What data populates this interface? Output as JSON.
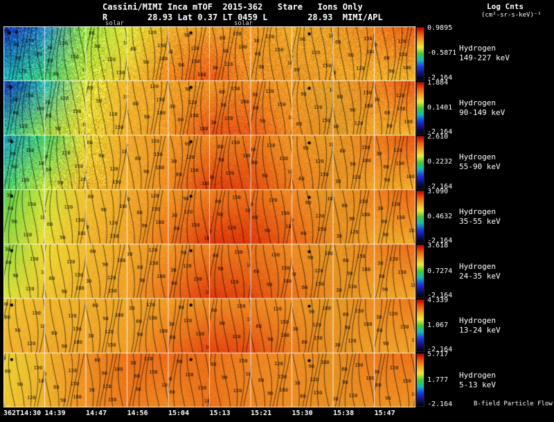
{
  "header": {
    "title": "Cassini/MIMI Inca mTOF  2015-362   Stare   Ions Only",
    "subtitle": "R        28.93 Lat 0.37 LT 0459 L        28.93  MIMI/APL",
    "legend_title": "Log Cnts",
    "legend_units": "(cm²-sr-s-keV)⁻¹",
    "solar_label_1": "solar",
    "solar_label_2": "solar"
  },
  "footer": {
    "note": "B-field Particle Flow"
  },
  "chart_data": {
    "type": "heatmap",
    "title": "Cassini/MIMI Inca mTOF 2015-362 Stare Ions Only",
    "subtitle_readout": {
      "R": "28.93",
      "Lat": "0.37",
      "LT": "0459",
      "L": "28.93",
      "source": "MIMI/APL"
    },
    "time_labels": [
      "362T14:30",
      "14:39",
      "14:47",
      "14:56",
      "15:04",
      "15:13",
      "15:21",
      "15:30",
      "15:38",
      "15:47"
    ],
    "contour_levels": [
      30,
      60,
      90,
      120,
      150,
      180
    ],
    "colorbar_stops": [
      "#c80000",
      "#f05a10",
      "#f0a820",
      "#f0e838",
      "#48c838",
      "#18b8b8",
      "#2038e0",
      "#101080",
      "#000000"
    ],
    "rows": [
      {
        "species": "Hydrogen",
        "energy": "149-227 keV",
        "cb_max": "0.9895",
        "cb_mid": "-0.5871",
        "cb_min": "-2.164",
        "noise": 26,
        "top": [
          "#0c2cb0",
          "#2e8fd0",
          "#8fdc3e",
          "#e0e73b",
          "#f0b22c",
          "#f0a02a",
          "#f09a27",
          "#f0ae2b",
          "#e89e28",
          "#ee8220",
          "#ec5c16"
        ],
        "bot": [
          "#18bdc0",
          "#40d06e",
          "#cce43c",
          "#eec630",
          "#f0881f",
          "#ee5514",
          "#f09124",
          "#e89225",
          "#f0a42a",
          "#f2b02c",
          "#f2bb2e"
        ],
        "markers": [
          [
            0,
            0.15,
            0.12
          ],
          [
            0,
            0.32,
            0.1
          ],
          [
            4,
            0.55,
            0.12
          ],
          [
            7,
            0.42,
            0.14
          ]
        ]
      },
      {
        "species": "Hydrogen",
        "energy": "90-149 keV",
        "cb_max": "1.884",
        "cb_mid": "0.1401",
        "cb_min": "-2.164",
        "noise": 20,
        "top": [
          "#0e35b5",
          "#2ab8b8",
          "#e0e73b",
          "#f0b42d",
          "#f0a42a",
          "#ef9826",
          "#ee8b23",
          "#f0a029",
          "#e0a02a",
          "#ee8522",
          "#eb5614"
        ],
        "bot": [
          "#2bc9a0",
          "#9ed83c",
          "#eed334",
          "#f0b02c",
          "#ef9926",
          "#e85014",
          "#e85a16",
          "#ee8b23",
          "#e09526",
          "#f0a82b",
          "#f2b52d"
        ],
        "markers": [
          [
            0,
            0.18,
            0.12
          ],
          [
            4,
            0.55,
            0.12
          ],
          [
            7,
            0.42,
            0.14
          ]
        ]
      },
      {
        "species": "Hydrogen",
        "energy": "55-90 keV",
        "cb_max": "2.610",
        "cb_mid": "0.2232",
        "cb_min": "-2.164",
        "noise": 14,
        "top": [
          "#1b9ec4",
          "#44d06a",
          "#eedd37",
          "#f0a72b",
          "#ef9b27",
          "#ee8a23",
          "#ec7a1d",
          "#ef9826",
          "#e69a26",
          "#ee7d1f",
          "#ea5213"
        ],
        "bot": [
          "#42d06e",
          "#c8e43b",
          "#f0b82e",
          "#f0ae2b",
          "#ee8a23",
          "#e03c0c",
          "#e24a10",
          "#ec7a1d",
          "#e68f23",
          "#f0a42a",
          "#f2b22c"
        ],
        "markers": [
          [
            0,
            0.2,
            0.12
          ],
          [
            4,
            0.55,
            0.12
          ],
          [
            7,
            0.42,
            0.14
          ]
        ]
      },
      {
        "species": "Hydrogen",
        "energy": "35-55 keV",
        "cb_max": "3.090",
        "cb_mid": "0.4632",
        "cb_min": "-2.164",
        "noise": 12,
        "top": [
          "#53d152",
          "#c8e43b",
          "#f0c431",
          "#f0aa2b",
          "#ef9826",
          "#ee8220",
          "#ec7219",
          "#ee8b23",
          "#e69a26",
          "#ee8220",
          "#ec6417"
        ],
        "bot": [
          "#9ad93d",
          "#eede37",
          "#f0b22c",
          "#f0a42a",
          "#ec7219",
          "#e0380b",
          "#de350a",
          "#ea6417",
          "#e68a21",
          "#f0a62a",
          "#f0ae2b"
        ],
        "markers": [
          [
            0,
            0.2,
            0.12
          ],
          [
            4,
            0.55,
            0.12
          ],
          [
            7,
            0.42,
            0.14
          ]
        ]
      },
      {
        "species": "Hydrogen",
        "energy": "24-35 keV",
        "cb_max": "3.618",
        "cb_mid": "0.7274",
        "cb_min": "-2.164",
        "noise": 10,
        "top": [
          "#8ad93f",
          "#eede37",
          "#f0bc2f",
          "#f0aa2b",
          "#ef9826",
          "#ee8522",
          "#ec7a1d",
          "#ee8e24",
          "#e69a26",
          "#ee8522",
          "#ec6a1a"
        ],
        "bot": [
          "#dce63b",
          "#f0c431",
          "#f0ae2b",
          "#f0a029",
          "#ec6e1b",
          "#e0380b",
          "#e24a10",
          "#ec7219",
          "#e68f23",
          "#f0a42a",
          "#f0aa2b"
        ],
        "markers": [
          [
            0,
            0.2,
            0.12
          ],
          [
            4,
            0.55,
            0.12
          ],
          [
            7,
            0.42,
            0.14
          ]
        ]
      },
      {
        "species": "Hydrogen",
        "energy": "13-24 keV",
        "cb_max": "4.339",
        "cb_mid": "1.067",
        "cb_min": "-2.164",
        "noise": 8,
        "top": [
          "#efc731",
          "#f0b82e",
          "#f0b02c",
          "#f0a82b",
          "#ef9e28",
          "#ee9124",
          "#ee8b23",
          "#ef9526",
          "#e69a26",
          "#ee8b23",
          "#ec7a1d"
        ],
        "bot": [
          "#f0b02c",
          "#f0aa2b",
          "#f0a42a",
          "#ef9c28",
          "#ec7219",
          "#e4430e",
          "#e64d12",
          "#ec7a1d",
          "#e69124",
          "#f0a029",
          "#f0a62a"
        ],
        "markers": [
          [
            0,
            0.2,
            0.12
          ],
          [
            4,
            0.55,
            0.12
          ],
          [
            7,
            0.42,
            0.14
          ]
        ]
      },
      {
        "species": "Hydrogen",
        "energy": "5-13 keV",
        "cb_max": "5.717",
        "cb_mid": "1.777",
        "cb_min": "-2.164",
        "noise": 8,
        "top": [
          "#e8d435",
          "#f0b42d",
          "#ee8e24",
          "#ec7219",
          "#ec6a1a",
          "#ec7219",
          "#ee8522",
          "#ee8e24",
          "#e69124",
          "#ec7a1d",
          "#ec7219"
        ],
        "bot": [
          "#f0c431",
          "#f0b22c",
          "#ee9124",
          "#ec7a1d",
          "#ee8b23",
          "#ec7219",
          "#ee8522",
          "#ee8b23",
          "#e69124",
          "#ee9124",
          "#ee9526"
        ],
        "markers": [
          [
            0,
            0.2,
            0.12
          ],
          [
            4,
            0.55,
            0.12
          ],
          [
            7,
            0.42,
            0.14
          ]
        ]
      }
    ]
  }
}
